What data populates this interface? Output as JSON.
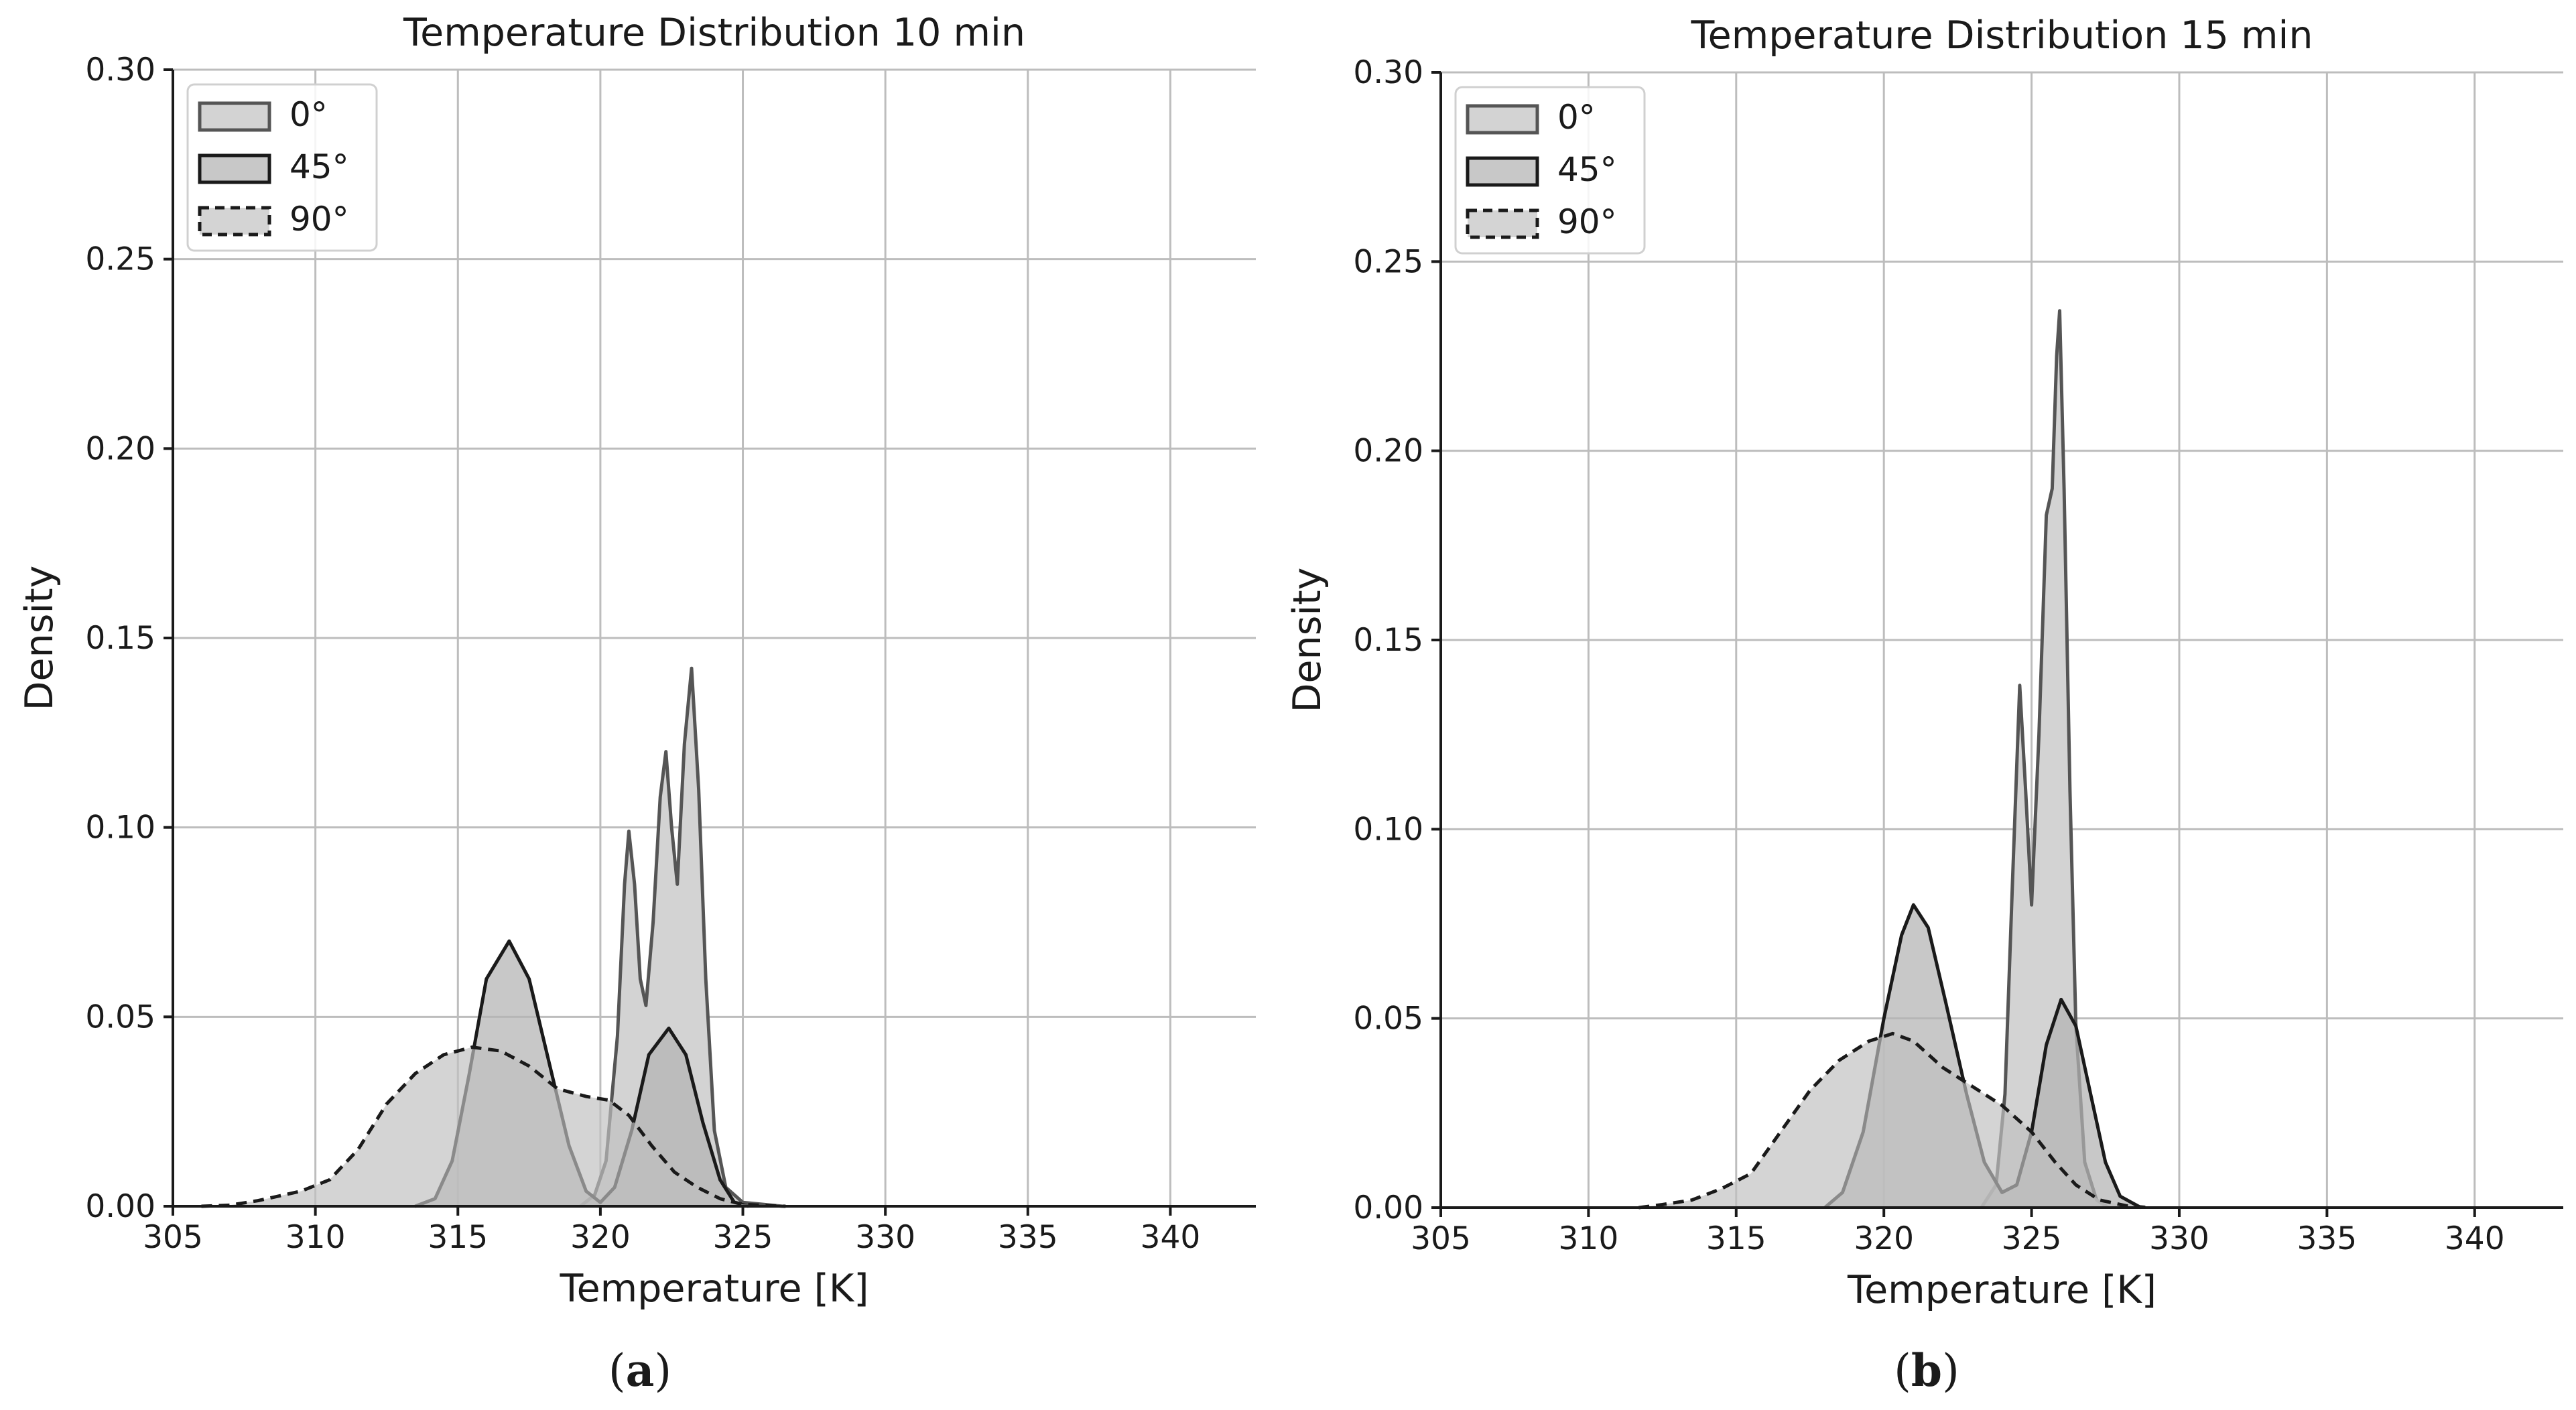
{
  "chart_data": [
    {
      "type": "area",
      "panel_label": "a",
      "title": "Temperature Distribution 10 min",
      "xlabel": "Temperature [K]",
      "ylabel": "Density",
      "xlim": [
        305,
        343
      ],
      "ylim": [
        0,
        0.3
      ],
      "xticks": [
        "305",
        "310",
        "315",
        "320",
        "325",
        "330",
        "335",
        "340"
      ],
      "yticks": [
        "0.00",
        "0.05",
        "0.10",
        "0.15",
        "0.20",
        "0.25",
        "0.30"
      ],
      "grid": true,
      "legend_position": "top-left",
      "series": [
        {
          "name": "0°",
          "fill": "#d3d3d3",
          "stroke": "#555555",
          "dashed": false,
          "points": [
            [
              319.3,
              0
            ],
            [
              319.8,
              0.003
            ],
            [
              320.2,
              0.012
            ],
            [
              320.6,
              0.045
            ],
            [
              320.85,
              0.085
            ],
            [
              321.0,
              0.099
            ],
            [
              321.2,
              0.085
            ],
            [
              321.4,
              0.06
            ],
            [
              321.6,
              0.053
            ],
            [
              321.85,
              0.075
            ],
            [
              322.1,
              0.108
            ],
            [
              322.3,
              0.12
            ],
            [
              322.5,
              0.1
            ],
            [
              322.7,
              0.085
            ],
            [
              322.95,
              0.122
            ],
            [
              323.2,
              0.142
            ],
            [
              323.45,
              0.11
            ],
            [
              323.7,
              0.06
            ],
            [
              324.0,
              0.02
            ],
            [
              324.4,
              0.005
            ],
            [
              325.0,
              0.001
            ],
            [
              326.4,
              0
            ]
          ]
        },
        {
          "name": "45°",
          "fill": "#b3b3b3",
          "fillOpacity": 0.72,
          "stroke": "#1a1a1a",
          "dashed": false,
          "points": [
            [
              313.5,
              0
            ],
            [
              314.2,
              0.002
            ],
            [
              314.8,
              0.012
            ],
            [
              315.4,
              0.035
            ],
            [
              316.0,
              0.06
            ],
            [
              316.8,
              0.07
            ],
            [
              317.5,
              0.06
            ],
            [
              318.2,
              0.038
            ],
            [
              318.9,
              0.016
            ],
            [
              319.5,
              0.004
            ],
            [
              320.0,
              0.001
            ],
            [
              320.5,
              0.005
            ],
            [
              321.1,
              0.02
            ],
            [
              321.7,
              0.04
            ],
            [
              322.4,
              0.047
            ],
            [
              323.0,
              0.04
            ],
            [
              323.6,
              0.022
            ],
            [
              324.2,
              0.007
            ],
            [
              324.7,
              0.001
            ],
            [
              325.2,
              0
            ]
          ]
        },
        {
          "name": "90°",
          "fill": "#c0c0c0",
          "fillOpacity": 0.68,
          "stroke": "#1a1a1a",
          "dashed": true,
          "points": [
            [
              306.0,
              0
            ],
            [
              307.0,
              0.0003
            ],
            [
              308.0,
              0.0015
            ],
            [
              309.5,
              0.004
            ],
            [
              310.5,
              0.007
            ],
            [
              311.5,
              0.015
            ],
            [
              312.5,
              0.027
            ],
            [
              313.5,
              0.035
            ],
            [
              314.5,
              0.04
            ],
            [
              315.5,
              0.042
            ],
            [
              316.5,
              0.041
            ],
            [
              317.5,
              0.037
            ],
            [
              318.5,
              0.031
            ],
            [
              319.5,
              0.029
            ],
            [
              320.3,
              0.028
            ],
            [
              321.0,
              0.024
            ],
            [
              321.8,
              0.016
            ],
            [
              322.6,
              0.009
            ],
            [
              323.4,
              0.005
            ],
            [
              324.2,
              0.002
            ],
            [
              325.0,
              0.0005
            ],
            [
              326.5,
              0
            ]
          ]
        }
      ]
    },
    {
      "type": "area",
      "panel_label": "b",
      "title": "Temperature Distribution 15 min",
      "xlabel": "Temperature [K]",
      "ylabel": "Density",
      "xlim": [
        305,
        343
      ],
      "ylim": [
        0,
        0.3
      ],
      "xticks": [
        "305",
        "310",
        "315",
        "320",
        "325",
        "330",
        "335",
        "340"
      ],
      "yticks": [
        "0.00",
        "0.05",
        "0.10",
        "0.15",
        "0.20",
        "0.25",
        "0.30"
      ],
      "grid": true,
      "legend_position": "top-left",
      "series": [
        {
          "name": "0°",
          "fill": "#d3d3d3",
          "stroke": "#555555",
          "dashed": false,
          "points": [
            [
              323.3,
              0
            ],
            [
              323.8,
              0.006
            ],
            [
              324.1,
              0.03
            ],
            [
              324.35,
              0.085
            ],
            [
              324.6,
              0.138
            ],
            [
              324.8,
              0.11
            ],
            [
              325.0,
              0.08
            ],
            [
              325.25,
              0.125
            ],
            [
              325.5,
              0.183
            ],
            [
              325.7,
              0.19
            ],
            [
              325.85,
              0.225
            ],
            [
              325.95,
              0.237
            ],
            [
              326.1,
              0.19
            ],
            [
              326.3,
              0.11
            ],
            [
              326.5,
              0.048
            ],
            [
              326.8,
              0.012
            ],
            [
              327.2,
              0.002
            ],
            [
              327.6,
              0
            ]
          ]
        },
        {
          "name": "45°",
          "fill": "#b3b3b3",
          "fillOpacity": 0.72,
          "stroke": "#1a1a1a",
          "dashed": false,
          "points": [
            [
              318.0,
              0
            ],
            [
              318.6,
              0.004
            ],
            [
              319.3,
              0.02
            ],
            [
              320.0,
              0.05
            ],
            [
              320.6,
              0.072
            ],
            [
              321.0,
              0.08
            ],
            [
              321.5,
              0.074
            ],
            [
              322.1,
              0.054
            ],
            [
              322.8,
              0.03
            ],
            [
              323.4,
              0.012
            ],
            [
              324.0,
              0.004
            ],
            [
              324.5,
              0.006
            ],
            [
              325.0,
              0.02
            ],
            [
              325.5,
              0.043
            ],
            [
              326.0,
              0.055
            ],
            [
              326.5,
              0.048
            ],
            [
              327.0,
              0.03
            ],
            [
              327.5,
              0.012
            ],
            [
              328.0,
              0.003
            ],
            [
              328.7,
              0
            ]
          ]
        },
        {
          "name": "90°",
          "fill": "#c0c0c0",
          "fillOpacity": 0.68,
          "stroke": "#1a1a1a",
          "dashed": true,
          "points": [
            [
              311.7,
              0
            ],
            [
              312.5,
              0.0008
            ],
            [
              313.5,
              0.002
            ],
            [
              314.5,
              0.005
            ],
            [
              315.5,
              0.009
            ],
            [
              316.5,
              0.02
            ],
            [
              317.5,
              0.031
            ],
            [
              318.5,
              0.039
            ],
            [
              319.5,
              0.044
            ],
            [
              320.3,
              0.046
            ],
            [
              321.0,
              0.044
            ],
            [
              322.0,
              0.037
            ],
            [
              323.0,
              0.032
            ],
            [
              324.0,
              0.027
            ],
            [
              325.0,
              0.02
            ],
            [
              325.8,
              0.012
            ],
            [
              326.5,
              0.006
            ],
            [
              327.3,
              0.002
            ],
            [
              328.2,
              0.0005
            ],
            [
              329.0,
              0
            ]
          ]
        }
      ]
    }
  ]
}
